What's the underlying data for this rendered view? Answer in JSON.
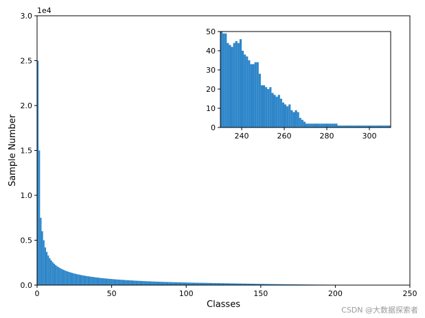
{
  "chart_data": [
    {
      "type": "bar",
      "name": "main",
      "title": "",
      "xlabel": "Classes",
      "ylabel": "Sample Number",
      "y_offset_text": "1e4",
      "xlim": [
        0,
        250
      ],
      "ylim": [
        0,
        30000
      ],
      "xticks": [
        0,
        50,
        100,
        150,
        200,
        250
      ],
      "yticks": [
        0,
        5000,
        10000,
        15000,
        20000,
        25000,
        30000
      ],
      "ytick_labels": [
        "0.0",
        "0.5",
        "1.0",
        "1.5",
        "2.0",
        "2.5",
        "3.0"
      ],
      "bar_color": "#2e86c9",
      "grid": false,
      "values": [
        25000,
        15000,
        7500,
        6000,
        5000,
        4200,
        3700,
        3300,
        3000,
        2750,
        2550,
        2380,
        2230,
        2100,
        1990,
        1890,
        1800,
        1720,
        1650,
        1580,
        1520,
        1460,
        1410,
        1360,
        1310,
        1270,
        1230,
        1190,
        1160,
        1120,
        1090,
        1060,
        1030,
        1000,
        980,
        950,
        930,
        910,
        880,
        860,
        840,
        820,
        800,
        780,
        760,
        745,
        730,
        715,
        700,
        685,
        670,
        655,
        640,
        628,
        616,
        604,
        592,
        580,
        569,
        558,
        548,
        538,
        528,
        518,
        508,
        499,
        490,
        481,
        472,
        464,
        456,
        448,
        440,
        432,
        425,
        418,
        411,
        404,
        397,
        390,
        384,
        378,
        372,
        366,
        360,
        354,
        349,
        344,
        339,
        334,
        329,
        324,
        319,
        315,
        311,
        307,
        303,
        299,
        295,
        291,
        287,
        283,
        279,
        275,
        272,
        269,
        266,
        263,
        260,
        257,
        254,
        251,
        248,
        245,
        242,
        239,
        236,
        233,
        230,
        227,
        224,
        221,
        218,
        215,
        212,
        209,
        206,
        203,
        200,
        197,
        194,
        191,
        188,
        185,
        182,
        179,
        176,
        173,
        170,
        167,
        164,
        161,
        158,
        155,
        152,
        149,
        146,
        143,
        140,
        137,
        134,
        131,
        128,
        125,
        122,
        119,
        116,
        113,
        110,
        108,
        106,
        104,
        102,
        100,
        98,
        96,
        94,
        92,
        90,
        88,
        86,
        84,
        82,
        80,
        78,
        76,
        74,
        72,
        70,
        68,
        66,
        64,
        62,
        60,
        58,
        56,
        54,
        52,
        50,
        49,
        48,
        47,
        46,
        45,
        44,
        43,
        42,
        41,
        40,
        39,
        38,
        37,
        36,
        35,
        34,
        33,
        32,
        31,
        30,
        29,
        28,
        27,
        26,
        25,
        24,
        23,
        22,
        21,
        20,
        19,
        18,
        17,
        16,
        15,
        14,
        13,
        12,
        11,
        10,
        9,
        8,
        8,
        7,
        7,
        6,
        6,
        5,
        5,
        4,
        4,
        3,
        3,
        3,
        2,
        2,
        2
      ]
    },
    {
      "type": "bar",
      "name": "inset",
      "title": "",
      "xlabel": "",
      "ylabel": "",
      "xlim": [
        230,
        310
      ],
      "ylim": [
        0,
        50
      ],
      "x_start": 230,
      "xticks": [
        240,
        260,
        280,
        300
      ],
      "yticks": [
        0,
        10,
        20,
        30,
        40,
        50
      ],
      "bar_color": "#2e86c9",
      "grid": false,
      "values": [
        50,
        49,
        49,
        44,
        43,
        42,
        44,
        45,
        44,
        46,
        40,
        38,
        37,
        35,
        33,
        33,
        34,
        34,
        28,
        22,
        22,
        21,
        20,
        21,
        18,
        17,
        16,
        17,
        15,
        13,
        12,
        11,
        12,
        9,
        8,
        9,
        8,
        5,
        4,
        3,
        2,
        2,
        2,
        2,
        2,
        2,
        2,
        2,
        2,
        2,
        2,
        2,
        2,
        2,
        2,
        1,
        1,
        1,
        1,
        1,
        1,
        1,
        1,
        1,
        1,
        1,
        1,
        1,
        1,
        1,
        1,
        1,
        1,
        1,
        1,
        1,
        1,
        1,
        1,
        1
      ]
    }
  ],
  "watermark": "CSDN @大数据探索者"
}
